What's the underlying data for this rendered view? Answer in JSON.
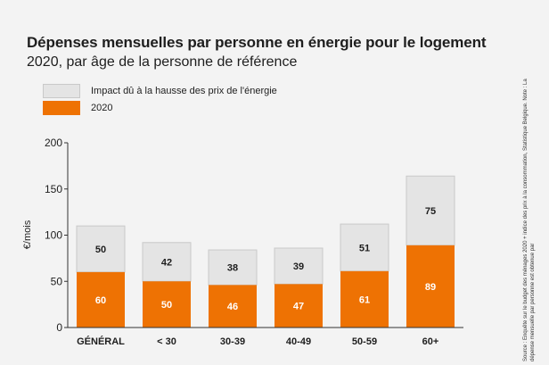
{
  "chart_data": {
    "type": "bar",
    "stacked": true,
    "title": "Dépenses mensuelles par personne en énergie pour le logement",
    "subtitle": "2020, par âge de la personne de référence",
    "ylabel": "€/mois",
    "ylim": [
      0,
      200
    ],
    "yticks": [
      "0",
      "50",
      "100",
      "150",
      "200"
    ],
    "grid": false,
    "legend_placement": "top-left",
    "categories": [
      "GÉNÉRAL",
      "< 30",
      "30-39",
      "40-49",
      "50-59",
      "60+"
    ],
    "series": [
      {
        "name": "2020",
        "color": "#ee7203",
        "values": [
          60,
          50,
          46,
          47,
          61,
          89
        ]
      },
      {
        "name": "Impact dû à la hausse des prix de l'énergie",
        "color": "#e4e4e4",
        "values": [
          50,
          42,
          38,
          39,
          51,
          75
        ]
      }
    ]
  },
  "source_note": "Source : Enquête sur le budget des ménages 2020 + indice des prix à la consommation, Statistique Belgique. Note : La dépense mensuelle par personne est obtenue par"
}
